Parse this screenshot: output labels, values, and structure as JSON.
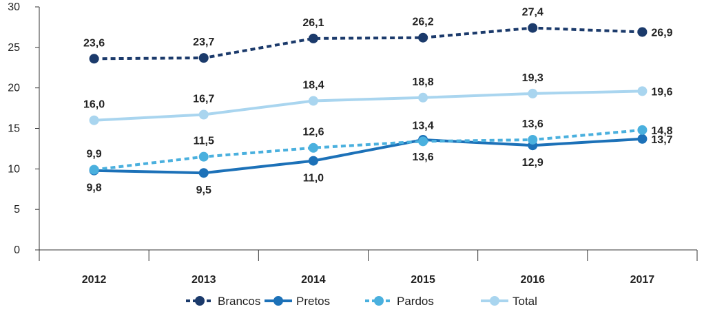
{
  "chart_data": {
    "type": "line",
    "categories": [
      "2012",
      "2013",
      "2014",
      "2015",
      "2016",
      "2017"
    ],
    "ylim": [
      0,
      30
    ],
    "yticks": [
      0,
      5,
      10,
      15,
      20,
      25,
      30
    ],
    "ytick_labels": [
      "0",
      "5",
      "10",
      "15",
      "20",
      "25",
      "30"
    ],
    "grid": false,
    "legend_position": "bottom",
    "series": [
      {
        "name": "Brancos",
        "values": [
          23.6,
          23.7,
          26.1,
          26.2,
          27.4,
          26.9
        ],
        "labels": [
          "23,6",
          "23,7",
          "26,1",
          "26,2",
          "27,4",
          "26,9"
        ],
        "label_pos": [
          "above",
          "above",
          "above",
          "above",
          "above",
          "right"
        ],
        "color": "#1b3a6b",
        "dashed": true
      },
      {
        "name": "Pretos",
        "values": [
          9.8,
          9.5,
          11.0,
          13.6,
          12.9,
          13.7
        ],
        "labels": [
          "9,8",
          "9,5",
          "11,0",
          "13,6",
          "12,9",
          "13,7"
        ],
        "label_pos": [
          "below",
          "below",
          "below",
          "below",
          "below",
          "right"
        ],
        "color": "#1c71b8",
        "dashed": false
      },
      {
        "name": "Pardos",
        "values": [
          9.9,
          11.5,
          12.6,
          13.4,
          13.6,
          14.8
        ],
        "labels": [
          "9,9",
          "11,5",
          "12,6",
          "13,4",
          "13,6",
          "14,8"
        ],
        "label_pos": [
          "above",
          "above",
          "above",
          "above",
          "above",
          "right"
        ],
        "color": "#4ab0de",
        "dashed": true
      },
      {
        "name": "Total",
        "values": [
          16.0,
          16.7,
          18.4,
          18.8,
          19.3,
          19.6
        ],
        "labels": [
          "16,0",
          "16,7",
          "18,4",
          "18,8",
          "19,3",
          "19,6"
        ],
        "label_pos": [
          "above",
          "above",
          "above",
          "above",
          "above",
          "right"
        ],
        "color": "#a9d5ef",
        "dashed": false
      }
    ]
  }
}
